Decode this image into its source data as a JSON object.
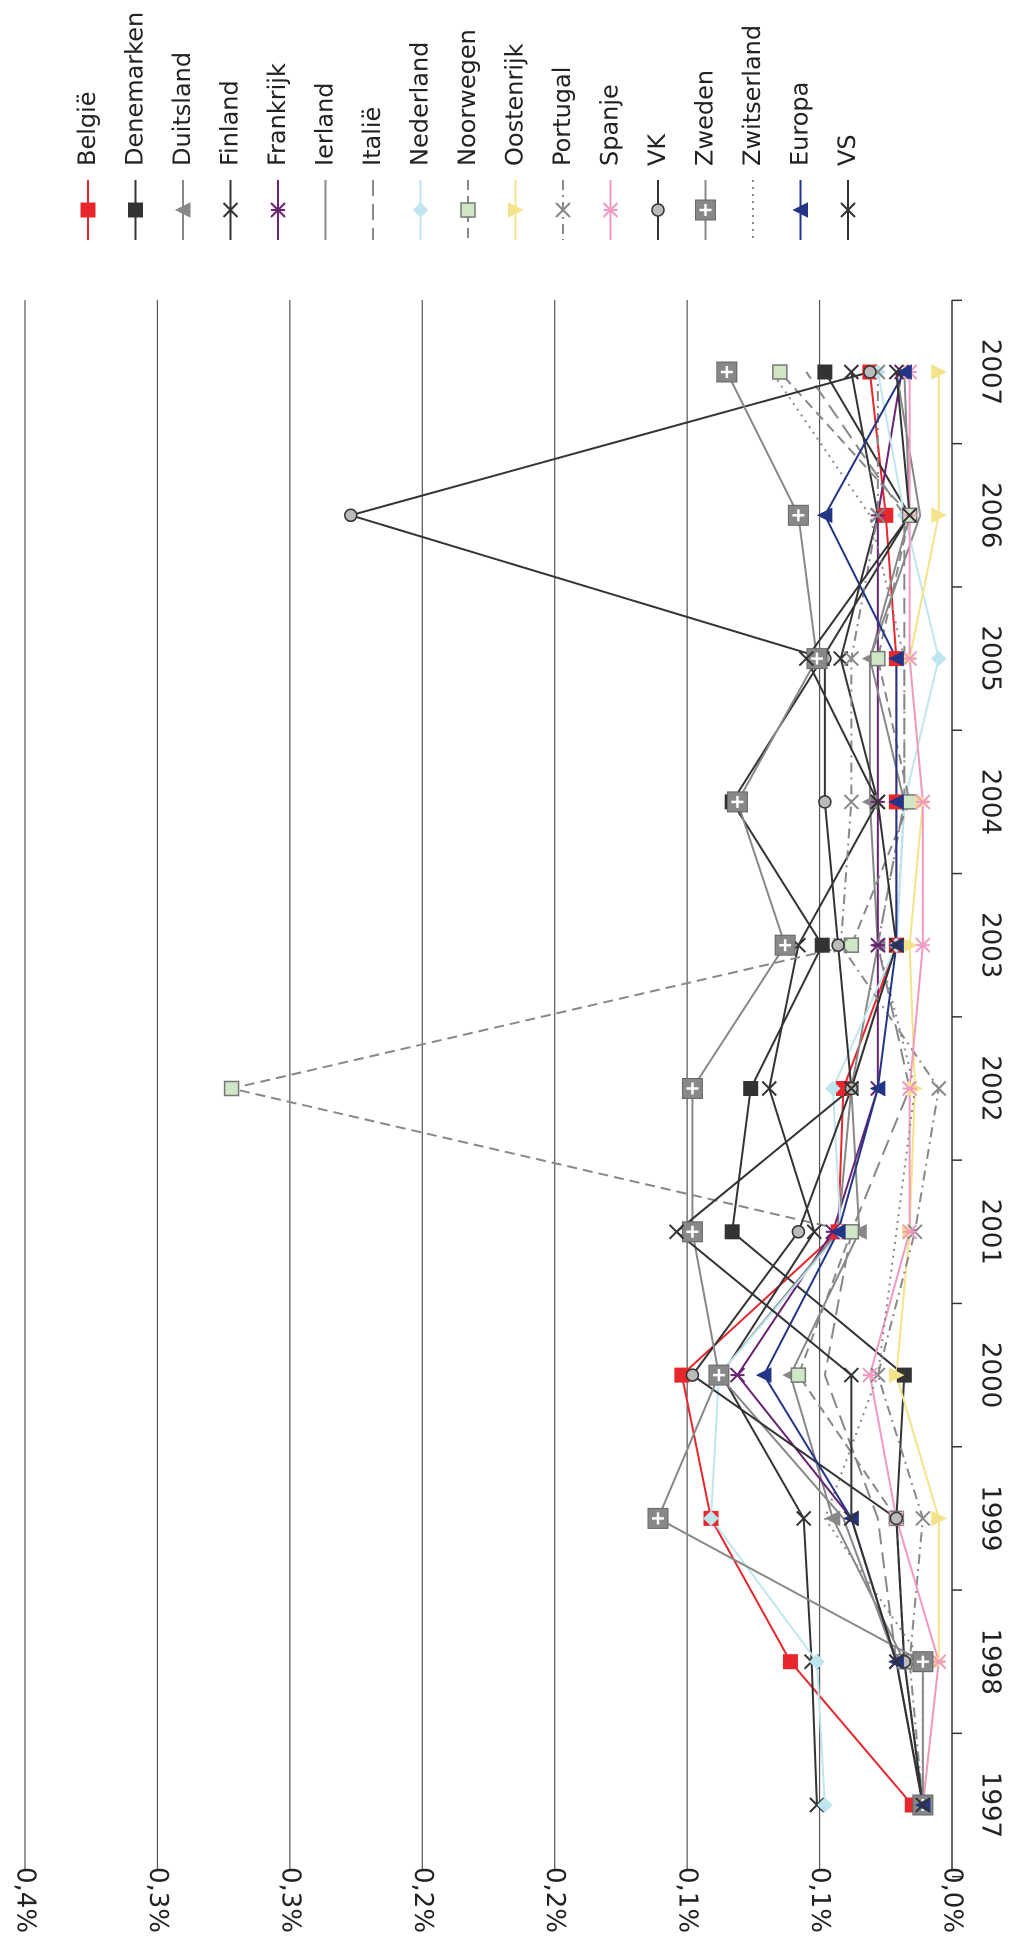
{
  "chart_data": {
    "type": "line",
    "title": "",
    "xlabel": "",
    "ylabel": "",
    "rotation": "chart rotated 90 degrees clockwise (read with page turned)",
    "categories": [
      "1997",
      "1998",
      "1999",
      "2000",
      "2001",
      "2002",
      "2003",
      "2004",
      "2005",
      "2006",
      "2007"
    ],
    "y_tick_labels": [
      "0,0%",
      "0,1%",
      "0,1%",
      "0,2%",
      "0,2%",
      "0,3%",
      "0,3%",
      "0,4%"
    ],
    "ylim": [
      0,
      0.35
    ],
    "y_tick_values": [
      0,
      0.05,
      0.1,
      0.15,
      0.2,
      0.25,
      0.3,
      0.35
    ],
    "grid": true,
    "legend_position": "right",
    "series": [
      {
        "name": "België",
        "color": "#e8262d",
        "marker": "square",
        "dash": "solid",
        "values": [
          0.015,
          0.061,
          0.091,
          0.102,
          0.043,
          0.041,
          0.021,
          0.021,
          0.021,
          0.025,
          0.031
        ]
      },
      {
        "name": "Denemarken",
        "color": "#333333",
        "marker": "square",
        "dash": "solid",
        "values": [
          0.011,
          0.018,
          0.021,
          0.018,
          0.083,
          0.076,
          0.049,
          0.083,
          0.049,
          0.016,
          0.048
        ]
      },
      {
        "name": "Duitsland",
        "color": "#888888",
        "marker": "triangle",
        "dash": "solid",
        "values": [
          0.011,
          0.018,
          0.045,
          0.061,
          0.035,
          0.038,
          0.028,
          0.031,
          0.031,
          0.016,
          0.018
        ]
      },
      {
        "name": "Finland",
        "color": "#333333",
        "marker": "x",
        "dash": "solid",
        "values": [
          0.051,
          0.053,
          0.056,
          0.087,
          0.052,
          0.069,
          0.058,
          0.028,
          0.042,
          0.028,
          0.038
        ]
      },
      {
        "name": "Frankrijk",
        "color": "#6b2373",
        "marker": "asterisk",
        "dash": "solid",
        "values": [
          0.011,
          0.021,
          0.038,
          0.081,
          0.045,
          0.028,
          0.028,
          0.028,
          0.028,
          0.028,
          0.019
        ]
      },
      {
        "name": "Ierland",
        "color": "#888888",
        "marker": "none",
        "dash": "solid",
        "values": [
          0.011,
          0.021,
          0.041,
          0.088,
          0.043,
          0.038,
          0.021,
          0.018,
          0.031,
          0.012,
          0.021
        ]
      },
      {
        "name": "Italië",
        "color": "#888888",
        "marker": "none",
        "dash": "longdash",
        "values": [
          0.011,
          0.021,
          0.028,
          0.048,
          0.038,
          0.016,
          0.028,
          0.018,
          0.018,
          0.018,
          0.055
        ]
      },
      {
        "name": "Nederland",
        "color": "#bfe6ef",
        "marker": "diamond",
        "dash": "solid",
        "values": [
          0.048,
          0.051,
          0.091,
          0.088,
          0.042,
          0.045,
          0.021,
          0.018,
          0.005,
          0.018,
          0.028
        ]
      },
      {
        "name": "Noorwegen",
        "color": "#888888",
        "marker": "square-light",
        "dash": "dash",
        "values": [
          0.011,
          0.018,
          0.021,
          0.058,
          0.038,
          0.272,
          0.038,
          0.016,
          0.028,
          0.016,
          0.065
        ]
      },
      {
        "name": "Oostenrijk",
        "color": "#f4e38a",
        "marker": "triangle-left",
        "dash": "solid",
        "values": [
          0.011,
          0.005,
          0.005,
          0.021,
          0.016,
          0.014,
          0.016,
          0.011,
          0.016,
          0.005,
          0.005
        ]
      },
      {
        "name": "Portugal",
        "color": "#888888",
        "marker": "x",
        "dash": "dashdot",
        "values": [
          0.011,
          0.016,
          0.011,
          0.028,
          0.014,
          0.005,
          0.042,
          0.038,
          0.038,
          0.028,
          0.028
        ]
      },
      {
        "name": "Spanje",
        "color": "#f09ac2",
        "marker": "asterisk",
        "dash": "solid",
        "values": [
          0.011,
          0.005,
          0.021,
          0.031,
          0.016,
          0.016,
          0.011,
          0.011,
          0.016,
          0.016,
          0.016
        ]
      },
      {
        "name": "VK",
        "color": "#333333",
        "marker": "circle",
        "dash": "solid",
        "values": [
          0.011,
          0.018,
          0.021,
          0.098,
          0.058,
          0.038,
          0.043,
          0.048,
          0.048,
          0.227,
          0.031
        ]
      },
      {
        "name": "Zweden",
        "color": "#888888",
        "marker": "square-plus",
        "dash": "solid",
        "values": [
          0.011,
          0.011,
          0.111,
          0.088,
          0.098,
          0.098,
          0.063,
          0.081,
          0.051,
          0.058,
          0.085
        ]
      },
      {
        "name": "Zwitserland",
        "color": "#888888",
        "marker": "none",
        "dash": "dot",
        "values": [
          0.011,
          0.011,
          0.048,
          0.028,
          0.021,
          0.014,
          0.028,
          0.018,
          0.018,
          0.031,
          0.068
        ]
      },
      {
        "name": "Europa",
        "color": "#233585",
        "marker": "triangle",
        "dash": "solid",
        "values": [
          0.011,
          0.021,
          0.038,
          0.071,
          0.043,
          0.028,
          0.021,
          0.021,
          0.021,
          0.048,
          0.018
        ]
      },
      {
        "name": "VS",
        "color": "#333333",
        "marker": "x",
        "dash": "solid",
        "values": [
          0.011,
          0.021,
          0.038,
          0.038,
          0.104,
          0.038,
          0.021,
          0.028,
          0.055,
          0.016,
          0.021
        ]
      }
    ]
  }
}
